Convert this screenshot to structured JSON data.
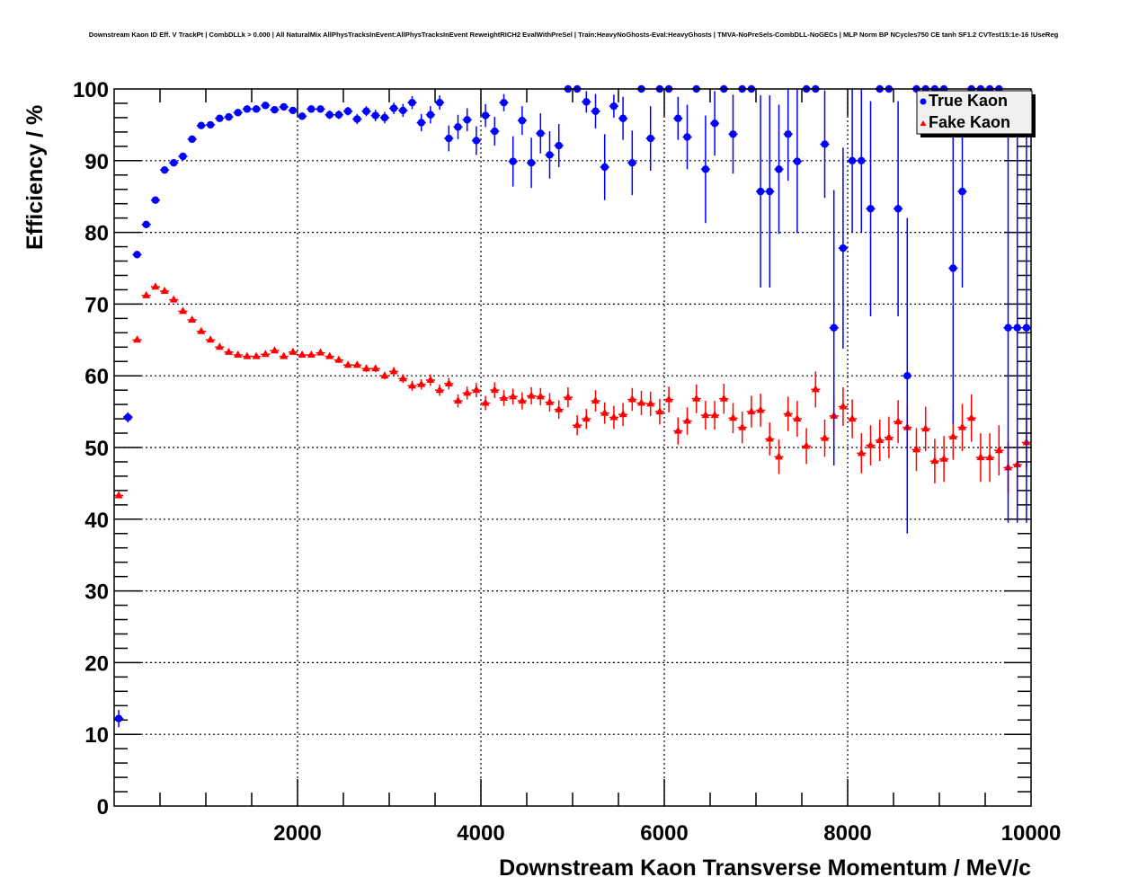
{
  "chart_data": {
    "type": "scatter",
    "title": "Downstream Kaon ID Eff. V TrackPt | CombDLLk > 0.000 | All NaturalMix AllPhysTracksInEvent:AllPhysTracksInEvent ReweightRICH2 EvalWithPreSel | Train:HeavyNoGhosts-Eval:HeavyGhosts | TMVA-NoPreSels-CombDLL-NoGECs | MLP Norm BP NCycles750 CE tanh SF1.2 CVTest15:1e-16 !UseReg",
    "xlabel": "Downstream Kaon Transverse Momentum / MeV/c",
    "ylabel": "Efficiency / %",
    "xlim": [
      0,
      10000
    ],
    "ylim": [
      0,
      100
    ],
    "x_bin_start": 0,
    "x_bin_width": 100,
    "xticks": [
      "2000",
      "4000",
      "6000",
      "8000",
      "10000"
    ],
    "xtick_values": [
      2000,
      4000,
      6000,
      8000,
      10000
    ],
    "yticks": [
      "0",
      "10",
      "20",
      "30",
      "40",
      "50",
      "60",
      "70",
      "80",
      "90",
      "100"
    ],
    "ytick_values": [
      0,
      10,
      20,
      30,
      40,
      50,
      60,
      70,
      80,
      90,
      100
    ],
    "grid": true,
    "legend_position": "top-right",
    "series": [
      {
        "name": "True Kaon",
        "marker": "circle",
        "color": "#0000ff",
        "values": [
          12.2,
          54.2,
          76.9,
          81.1,
          84.5,
          88.7,
          89.7,
          90.6,
          93.0,
          94.9,
          95.0,
          95.9,
          96.1,
          96.7,
          97.2,
          97.2,
          97.7,
          97.1,
          97.5,
          97.0,
          96.2,
          97.2,
          97.2,
          96.4,
          96.4,
          96.9,
          95.8,
          96.9,
          96.3,
          96.0,
          97.3,
          97.0,
          98.1,
          95.3,
          96.4,
          98.1,
          93.1,
          94.7,
          95.7,
          92.8,
          96.3,
          94.1,
          98.1,
          89.9,
          95.6,
          89.7,
          93.8,
          90.8,
          92.1,
          100,
          100,
          98.2,
          96.9,
          89.1,
          97.6,
          95.9,
          89.7,
          100,
          93.1,
          100,
          100,
          95.9,
          93.3,
          100,
          88.8,
          95.2,
          100,
          93.7,
          100,
          100,
          85.7,
          85.7,
          88.8,
          93.7,
          89.9,
          100,
          100,
          92.3,
          66.7,
          77.8,
          90.0,
          90.0,
          83.3,
          100,
          100,
          83.3,
          60.0,
          100,
          100,
          100,
          100,
          75.0,
          85.7,
          100,
          100,
          100,
          100,
          66.7,
          66.7,
          66.7
        ],
        "errors": [
          1.2,
          0.7,
          0.5,
          0.4,
          0.4,
          0.3,
          0.3,
          0.3,
          0.3,
          0.3,
          0.3,
          0.3,
          0.3,
          0.3,
          0.3,
          0.3,
          0.4,
          0.4,
          0.4,
          0.5,
          0.5,
          0.5,
          0.5,
          0.6,
          0.6,
          0.6,
          0.7,
          0.7,
          0.8,
          0.8,
          0.8,
          0.9,
          0.9,
          1.2,
          1.2,
          1.0,
          1.8,
          1.7,
          1.6,
          2.0,
          1.6,
          2.0,
          1.2,
          3.5,
          2.0,
          3.5,
          2.8,
          3.3,
          3.0,
          0,
          0,
          1.5,
          2.4,
          4.6,
          1.6,
          3.0,
          4.5,
          0,
          4.5,
          0,
          0,
          3.0,
          4.5,
          0,
          7.5,
          4.5,
          0,
          5.5,
          0,
          0,
          13.4,
          13.4,
          9.0,
          6.5,
          10.0,
          0,
          0,
          7.5,
          19.2,
          14.0,
          10.0,
          10.0,
          15.0,
          0,
          0,
          15.0,
          22.0,
          0,
          0,
          0,
          0,
          21.7,
          13.4,
          0,
          0,
          0,
          0,
          27.2,
          27.2,
          27.2
        ]
      },
      {
        "name": "Fake Kaon",
        "marker": "triangle",
        "color": "#ff0000",
        "values": [
          43.3,
          54.3,
          65.0,
          71.2,
          72.4,
          71.8,
          70.6,
          69.0,
          67.8,
          66.2,
          65.0,
          64.0,
          63.3,
          62.9,
          62.7,
          62.7,
          63.0,
          63.5,
          62.7,
          63.3,
          62.9,
          62.9,
          63.2,
          62.7,
          62.2,
          61.5,
          61.5,
          61.0,
          61.0,
          60.0,
          60.6,
          59.6,
          58.6,
          58.8,
          59.4,
          58.0,
          58.9,
          56.5,
          57.6,
          58.0,
          56.2,
          58.0,
          56.9,
          57.1,
          56.5,
          57.2,
          57.1,
          56.3,
          55.3,
          57.0,
          53.1,
          54.0,
          56.5,
          54.8,
          54.2,
          54.6,
          56.7,
          56.2,
          56.1,
          55.0,
          56.7,
          52.3,
          53.7,
          56.8,
          54.5,
          54.5,
          56.8,
          54.1,
          52.8,
          55.0,
          55.2,
          51.2,
          48.7,
          54.7,
          54.0,
          50.2,
          58.1,
          51.3,
          54.4,
          55.7,
          54.0,
          49.2,
          50.3,
          51.0,
          51.4,
          53.6,
          52.8,
          49.7,
          52.6,
          48.1,
          48.4,
          51.5,
          52.8,
          54.1,
          48.6,
          48.6,
          49.6,
          47.2,
          47.6,
          50.7
        ],
        "errors": [
          0.3,
          0.3,
          0.3,
          0.3,
          0.3,
          0.3,
          0.3,
          0.3,
          0.3,
          0.3,
          0.3,
          0.3,
          0.3,
          0.3,
          0.3,
          0.3,
          0.3,
          0.3,
          0.3,
          0.3,
          0.3,
          0.3,
          0.3,
          0.3,
          0.4,
          0.4,
          0.4,
          0.5,
          0.5,
          0.5,
          0.6,
          0.6,
          0.7,
          0.7,
          0.8,
          0.8,
          0.8,
          0.9,
          0.9,
          1.0,
          1.0,
          1.1,
          1.1,
          1.1,
          1.2,
          1.2,
          1.2,
          1.3,
          1.3,
          1.4,
          1.4,
          1.4,
          1.5,
          1.5,
          1.6,
          1.6,
          1.6,
          1.7,
          1.7,
          1.8,
          1.8,
          1.9,
          1.9,
          2.0,
          2.0,
          2.0,
          2.1,
          2.1,
          2.2,
          2.2,
          2.3,
          2.3,
          2.4,
          2.4,
          2.5,
          2.5,
          2.5,
          2.6,
          2.6,
          2.7,
          2.7,
          2.8,
          2.8,
          2.9,
          2.9,
          3.0,
          3.0,
          3.0,
          3.1,
          3.1,
          3.2,
          3.2,
          3.3,
          3.3,
          3.4,
          3.4,
          3.5,
          3.5,
          3.6,
          3.6
        ]
      }
    ]
  }
}
